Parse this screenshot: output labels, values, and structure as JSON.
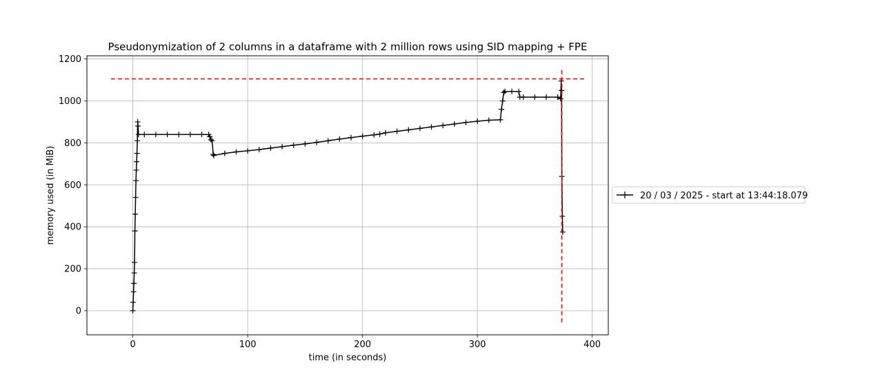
{
  "chart_data": {
    "type": "line",
    "title": "Pseudonymization of 2 columns in a dataframe with 2 million rows using SID mapping + FPE",
    "xlabel": "time (in seconds)",
    "ylabel": "memory used (in MiB)",
    "xlim": [
      -40,
      414
    ],
    "ylim": [
      -115,
      1215
    ],
    "xticks": [
      0,
      100,
      200,
      300,
      400
    ],
    "yticks": [
      0,
      200,
      400,
      600,
      800,
      1000,
      1200
    ],
    "grid": true,
    "legend_position": "outside-right",
    "series": [
      {
        "name": "20 / 03 / 2025 - start at 13:44:18.079",
        "color": "#000000",
        "marker": "+",
        "x": [
          0,
          0.3,
          0.6,
          0.9,
          1.2,
          1.5,
          1.8,
          2.1,
          2.4,
          2.7,
          3.0,
          3.3,
          3.6,
          3.9,
          4.2,
          4.5,
          5,
          10,
          20,
          30,
          40,
          50,
          60,
          66,
          67,
          68,
          69,
          70,
          70.5,
          80,
          90,
          100,
          110,
          120,
          130,
          140,
          150,
          160,
          170,
          180,
          190,
          200,
          210,
          215,
          220,
          230,
          240,
          250,
          260,
          270,
          280,
          290,
          300,
          310,
          320,
          321,
          322,
          323,
          324,
          330,
          336,
          337,
          340,
          350,
          360,
          370,
          372.5,
          373,
          373.3,
          373.6,
          374,
          374.3
        ],
        "y": [
          0,
          40,
          90,
          130,
          180,
          230,
          380,
          460,
          540,
          620,
          670,
          710,
          750,
          810,
          900,
          880,
          840,
          840,
          840,
          840,
          840,
          840,
          840,
          840,
          830,
          815,
          810,
          745,
          740,
          750,
          757,
          762,
          768,
          775,
          782,
          789,
          795,
          802,
          810,
          818,
          825,
          832,
          838,
          842,
          848,
          855,
          862,
          869,
          876,
          883,
          890,
          897,
          903,
          908,
          910,
          960,
          1000,
          1040,
          1045,
          1045,
          1045,
          1018,
          1018,
          1018,
          1018,
          1018,
          1010,
          1095,
          1050,
          640,
          450,
          375
        ]
      },
      {
        "name": "",
        "color": "#ff0000",
        "style": "dashed",
        "x": [
          -19,
          393
        ],
        "y": [
          1105,
          1105
        ]
      },
      {
        "name": "",
        "color": "#ff0000",
        "style": "dashed",
        "x": [
          373.5,
          373.5
        ],
        "y": [
          -55,
          1160
        ]
      }
    ]
  }
}
